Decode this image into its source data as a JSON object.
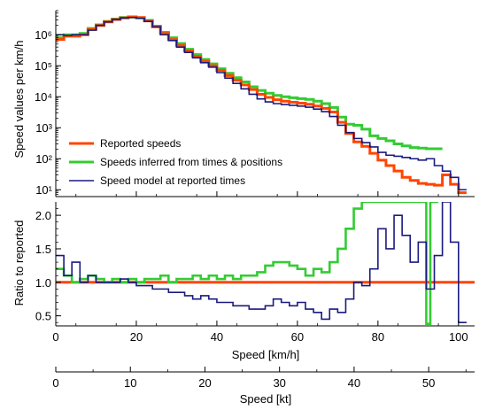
{
  "chart_data": [
    {
      "type": "line",
      "panel": "top",
      "ylabel": "Speed values per km/h",
      "yscale": "log",
      "xlim": [
        0,
        104
      ],
      "ylim": [
        6,
        6000000
      ],
      "y_ticks": [
        {
          "value": 10,
          "label": "10¹"
        },
        {
          "value": 100,
          "label": "10²"
        },
        {
          "value": 1000,
          "label": "10³"
        },
        {
          "value": 10000,
          "label": "10⁴"
        },
        {
          "value": 100000,
          "label": "10⁵"
        },
        {
          "value": 1000000,
          "label": "10⁶"
        }
      ],
      "legend": {
        "placement": "lower-left",
        "entries": [
          {
            "name": "Reported speeds",
            "color": "#ff4500"
          },
          {
            "name": "Speeds inferred from times & positions",
            "color": "#33cc33"
          },
          {
            "name": "Speed model at reported times",
            "color": "#1a1a80"
          }
        ]
      },
      "series": [
        {
          "name": "Reported speeds",
          "color": "#ff4500",
          "points": [
            [
              0,
              700000
            ],
            [
              2,
              900000
            ],
            [
              4,
              900000
            ],
            [
              6,
              1000000
            ],
            [
              8,
              1500000
            ],
            [
              10,
              2000000
            ],
            [
              12,
              2600000
            ],
            [
              14,
              3100000
            ],
            [
              16,
              3500000
            ],
            [
              18,
              3800000
            ],
            [
              20,
              3600000
            ],
            [
              22,
              2800000
            ],
            [
              24,
              1800000
            ],
            [
              26,
              1100000
            ],
            [
              28,
              700000
            ],
            [
              30,
              450000
            ],
            [
              32,
              300000
            ],
            [
              34,
              200000
            ],
            [
              36,
              140000
            ],
            [
              38,
              100000
            ],
            [
              40,
              70000
            ],
            [
              42,
              48000
            ],
            [
              44,
              34000
            ],
            [
              46,
              24000
            ],
            [
              48,
              17000
            ],
            [
              50,
              12000
            ],
            [
              52,
              9500
            ],
            [
              54,
              8000
            ],
            [
              56,
              7200
            ],
            [
              58,
              6600
            ],
            [
              60,
              6200
            ],
            [
              62,
              5700
            ],
            [
              64,
              5000
            ],
            [
              66,
              4200
            ],
            [
              68,
              3200
            ],
            [
              70,
              1500
            ],
            [
              72,
              650
            ],
            [
              74,
              350
            ],
            [
              76,
              250
            ],
            [
              78,
              150
            ],
            [
              80,
              90
            ],
            [
              82,
              60
            ],
            [
              84,
              40
            ],
            [
              86,
              25
            ],
            [
              88,
              20
            ],
            [
              90,
              16
            ],
            [
              92,
              15
            ],
            [
              94,
              14
            ],
            [
              96,
              30
            ],
            [
              98,
              15
            ],
            [
              100,
              8
            ]
          ]
        },
        {
          "name": "Speeds inferred from times & positions",
          "color": "#33cc33",
          "points": [
            [
              0,
              800000
            ],
            [
              2,
              1000000
            ],
            [
              4,
              1000000
            ],
            [
              6,
              1100000
            ],
            [
              8,
              1600000
            ],
            [
              10,
              2100000
            ],
            [
              12,
              2700000
            ],
            [
              14,
              3200000
            ],
            [
              16,
              3600000
            ],
            [
              18,
              3700000
            ],
            [
              20,
              3500000
            ],
            [
              22,
              2900000
            ],
            [
              24,
              1900000
            ],
            [
              26,
              1200000
            ],
            [
              28,
              800000
            ],
            [
              30,
              520000
            ],
            [
              32,
              340000
            ],
            [
              34,
              230000
            ],
            [
              36,
              160000
            ],
            [
              38,
              115000
            ],
            [
              40,
              80000
            ],
            [
              42,
              57000
            ],
            [
              44,
              41000
            ],
            [
              46,
              30000
            ],
            [
              48,
              21000
            ],
            [
              50,
              16000
            ],
            [
              52,
              13000
            ],
            [
              54,
              11000
            ],
            [
              56,
              10000
            ],
            [
              58,
              9300
            ],
            [
              60,
              8700
            ],
            [
              62,
              8200
            ],
            [
              64,
              7200
            ],
            [
              66,
              6000
            ],
            [
              68,
              4500
            ],
            [
              70,
              2200
            ],
            [
              72,
              1300
            ],
            [
              74,
              1200
            ],
            [
              76,
              900
            ],
            [
              78,
              550
            ],
            [
              80,
              450
            ],
            [
              82,
              380
            ],
            [
              84,
              300
            ],
            [
              86,
              260
            ],
            [
              88,
              230
            ],
            [
              90,
              220
            ],
            [
              92,
              210
            ],
            [
              94,
              210
            ]
          ]
        },
        {
          "name": "Speed model at reported times",
          "color": "#1a1a80",
          "points": [
            [
              0,
              1000000
            ],
            [
              2,
              950000
            ],
            [
              4,
              1000000
            ],
            [
              6,
              1000000
            ],
            [
              8,
              1400000
            ],
            [
              10,
              2000000
            ],
            [
              12,
              2600000
            ],
            [
              14,
              3100000
            ],
            [
              16,
              3500000
            ],
            [
              18,
              3600000
            ],
            [
              20,
              3400000
            ],
            [
              22,
              2700000
            ],
            [
              24,
              1800000
            ],
            [
              26,
              1000000
            ],
            [
              28,
              650000
            ],
            [
              30,
              400000
            ],
            [
              32,
              270000
            ],
            [
              34,
              180000
            ],
            [
              36,
              125000
            ],
            [
              38,
              90000
            ],
            [
              40,
              60000
            ],
            [
              42,
              40000
            ],
            [
              44,
              27000
            ],
            [
              46,
              18000
            ],
            [
              48,
              12000
            ],
            [
              50,
              8500
            ],
            [
              52,
              6800
            ],
            [
              54,
              6000
            ],
            [
              56,
              5600
            ],
            [
              58,
              5300
            ],
            [
              60,
              5000
            ],
            [
              62,
              4600
            ],
            [
              64,
              4000
            ],
            [
              66,
              3300
            ],
            [
              68,
              2300
            ],
            [
              70,
              1200
            ],
            [
              72,
              700
            ],
            [
              74,
              450
            ],
            [
              76,
              330
            ],
            [
              78,
              240
            ],
            [
              80,
              160
            ],
            [
              82,
              130
            ],
            [
              84,
              120
            ],
            [
              86,
              110
            ],
            [
              88,
              100
            ],
            [
              90,
              90
            ],
            [
              92,
              100
            ],
            [
              94,
              60
            ],
            [
              96,
              40
            ],
            [
              98,
              25
            ],
            [
              100,
              10
            ]
          ]
        }
      ]
    },
    {
      "type": "line",
      "panel": "bottom",
      "ylabel": "Ratio to reported",
      "xlabel": "Speed [km/h]",
      "xlim": [
        0,
        104
      ],
      "ylim": [
        0.35,
        2.2
      ],
      "x_ticks": [
        0,
        20,
        40,
        60,
        80,
        100
      ],
      "y_ticks": [
        {
          "value": 0.5,
          "label": "0.5"
        },
        {
          "value": 1.0,
          "label": "1.0"
        },
        {
          "value": 1.5,
          "label": "1.5"
        },
        {
          "value": 2.0,
          "label": "2.0"
        }
      ],
      "series": [
        {
          "name": "Reported speeds",
          "color": "#ff4500",
          "points": [
            [
              0,
              1.0
            ],
            [
              104,
              1.0
            ]
          ]
        },
        {
          "name": "Speeds inferred from times & positions",
          "color": "#33cc33",
          "points": [
            [
              0,
              1.2
            ],
            [
              2,
              1.1
            ],
            [
              4,
              1.0
            ],
            [
              6,
              1.05
            ],
            [
              8,
              1.1
            ],
            [
              10,
              1.05
            ],
            [
              12,
              1.0
            ],
            [
              14,
              1.05
            ],
            [
              16,
              1.0
            ],
            [
              18,
              1.05
            ],
            [
              20,
              1.0
            ],
            [
              22,
              1.05
            ],
            [
              24,
              1.05
            ],
            [
              26,
              1.1
            ],
            [
              28,
              1.0
            ],
            [
              30,
              1.05
            ],
            [
              32,
              1.05
            ],
            [
              34,
              1.1
            ],
            [
              36,
              1.05
            ],
            [
              38,
              1.1
            ],
            [
              40,
              1.05
            ],
            [
              42,
              1.1
            ],
            [
              44,
              1.05
            ],
            [
              46,
              1.1
            ],
            [
              48,
              1.1
            ],
            [
              50,
              1.15
            ],
            [
              52,
              1.25
            ],
            [
              54,
              1.3
            ],
            [
              56,
              1.3
            ],
            [
              58,
              1.25
            ],
            [
              60,
              1.2
            ],
            [
              62,
              1.1
            ],
            [
              64,
              1.2
            ],
            [
              66,
              1.15
            ],
            [
              68,
              1.3
            ],
            [
              70,
              1.5
            ],
            [
              72,
              1.8
            ],
            [
              74,
              2.1
            ],
            [
              76,
              2.2
            ],
            [
              92,
              0.38
            ],
            [
              93,
              2.2
            ]
          ]
        },
        {
          "name": "Speed model at reported times",
          "color": "#1a1a80",
          "points": [
            [
              0,
              1.4
            ],
            [
              2,
              1.1
            ],
            [
              4,
              1.3
            ],
            [
              6,
              1.0
            ],
            [
              8,
              1.1
            ],
            [
              10,
              1.0
            ],
            [
              12,
              1.0
            ],
            [
              14,
              1.0
            ],
            [
              16,
              1.05
            ],
            [
              18,
              1.0
            ],
            [
              20,
              0.95
            ],
            [
              22,
              0.95
            ],
            [
              24,
              0.9
            ],
            [
              26,
              0.9
            ],
            [
              28,
              0.85
            ],
            [
              30,
              0.85
            ],
            [
              32,
              0.8
            ],
            [
              34,
              0.75
            ],
            [
              36,
              0.8
            ],
            [
              38,
              0.75
            ],
            [
              40,
              0.7
            ],
            [
              42,
              0.7
            ],
            [
              44,
              0.65
            ],
            [
              46,
              0.65
            ],
            [
              48,
              0.6
            ],
            [
              50,
              0.6
            ],
            [
              52,
              0.65
            ],
            [
              54,
              0.75
            ],
            [
              56,
              0.7
            ],
            [
              58,
              0.65
            ],
            [
              60,
              0.7
            ],
            [
              62,
              0.6
            ],
            [
              64,
              0.55
            ],
            [
              66,
              0.45
            ],
            [
              68,
              0.6
            ],
            [
              70,
              0.55
            ],
            [
              72,
              0.75
            ],
            [
              74,
              1.0
            ],
            [
              76,
              0.95
            ],
            [
              78,
              1.2
            ],
            [
              80,
              1.8
            ],
            [
              82,
              1.5
            ],
            [
              84,
              2.0
            ],
            [
              86,
              1.7
            ],
            [
              88,
              1.3
            ],
            [
              90,
              1.6
            ],
            [
              92,
              0.9
            ],
            [
              94,
              1.4
            ],
            [
              96,
              2.2
            ],
            [
              98,
              1.6
            ],
            [
              100,
              0.4
            ]
          ]
        }
      ]
    },
    {
      "type": "axis",
      "panel": "secondary-x",
      "xlabel": "Speed [kt]",
      "xlim": [
        0,
        56.156
      ],
      "x_ticks": [
        0,
        10,
        20,
        30,
        40,
        50
      ]
    }
  ]
}
